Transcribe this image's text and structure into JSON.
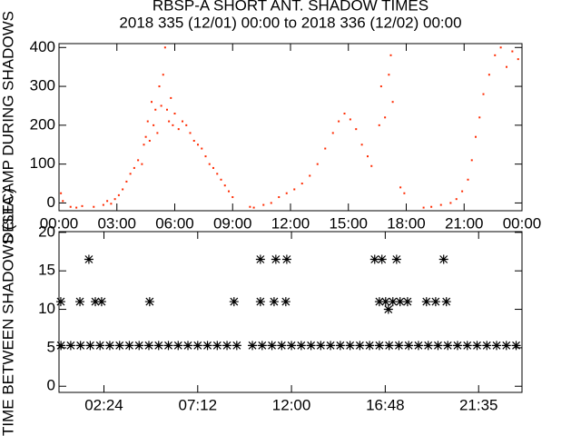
{
  "chart_data": [
    {
      "type": "scatter",
      "marker": "dot",
      "color": "#ff2a00",
      "title": "RBSP-A SHORT ANT. SHADOW TIMES",
      "subtitle": "2018 335 (12/01) 00:00 to 2018 336 (12/02) 00:00",
      "y_label": "DELTA AMP DURING SHADOWS",
      "xlim": [
        0,
        24
      ],
      "ylim": [
        -20,
        410
      ],
      "xticks": [
        {
          "value": 0,
          "label": "00:00"
        },
        {
          "value": 3,
          "label": "03:00"
        },
        {
          "value": 6,
          "label": "06:00"
        },
        {
          "value": 9,
          "label": "09:00"
        },
        {
          "value": 12,
          "label": "12:00"
        },
        {
          "value": 15,
          "label": "15:00"
        },
        {
          "value": 18,
          "label": "18:00"
        },
        {
          "value": 21,
          "label": "21:00"
        },
        {
          "value": 24,
          "label": "00:00"
        }
      ],
      "yticks": [
        0,
        100,
        200,
        300,
        400
      ],
      "x": [
        0.1,
        0.2,
        0.6,
        0.9,
        1.2,
        1.8,
        2.3,
        2.5,
        2.7,
        2.9,
        3.1,
        3.3,
        3.5,
        3.7,
        3.9,
        4.1,
        4.3,
        4.4,
        4.5,
        4.6,
        4.7,
        4.8,
        4.9,
        5.0,
        5.1,
        5.2,
        5.3,
        5.4,
        5.5,
        5.6,
        5.7,
        5.8,
        5.9,
        6.0,
        6.2,
        6.4,
        6.6,
        6.8,
        7.0,
        7.2,
        7.4,
        7.6,
        7.8,
        8.0,
        8.2,
        8.4,
        8.6,
        8.8,
        9.0,
        9.9,
        10.1,
        10.6,
        11.0,
        11.4,
        11.8,
        12.2,
        12.6,
        13.0,
        13.4,
        13.8,
        14.2,
        14.5,
        14.8,
        15.1,
        15.4,
        15.7,
        16.0,
        16.2,
        16.6,
        16.7,
        16.9,
        17.1,
        17.2,
        17.3,
        17.7,
        17.9,
        18.9,
        19.3,
        19.8,
        20.3,
        20.6,
        20.9,
        21.2,
        21.4,
        21.6,
        21.8,
        22.0,
        22.3,
        22.6,
        22.9,
        23.2,
        23.5,
        23.8
      ],
      "values": [
        25,
        5,
        -10,
        -12,
        -8,
        -10,
        -5,
        5,
        -2,
        10,
        20,
        35,
        55,
        75,
        90,
        110,
        100,
        150,
        170,
        210,
        160,
        260,
        200,
        240,
        180,
        300,
        250,
        330,
        400,
        240,
        210,
        270,
        200,
        230,
        190,
        210,
        200,
        180,
        160,
        150,
        140,
        120,
        100,
        90,
        75,
        60,
        45,
        30,
        15,
        -10,
        -12,
        -5,
        0,
        15,
        25,
        35,
        50,
        70,
        100,
        140,
        180,
        210,
        230,
        215,
        190,
        150,
        120,
        95,
        200,
        300,
        220,
        330,
        380,
        260,
        40,
        25,
        -12,
        -10,
        -5,
        0,
        10,
        30,
        60,
        110,
        170,
        220,
        280,
        330,
        380,
        400,
        350,
        390,
        370
      ]
    },
    {
      "type": "scatter",
      "marker": "asterisk",
      "color": "#000000",
      "y_label": "TIME BETWEEN SHADOWS (SEC)",
      "xlim": [
        0.1,
        23.8
      ],
      "ylim": [
        -0.8,
        20.1
      ],
      "xticks": [
        {
          "value": 2.4,
          "label": "02:24"
        },
        {
          "value": 7.2,
          "label": "07:12"
        },
        {
          "value": 12,
          "label": "12:00"
        },
        {
          "value": 16.8,
          "label": "16:48"
        },
        {
          "value": 21.58,
          "label": "21:35"
        }
      ],
      "yticks": [
        0,
        5,
        10,
        15,
        20
      ],
      "x": [
        0.2,
        0.7,
        1.2,
        1.7,
        2.2,
        2.7,
        3.2,
        3.7,
        4.2,
        4.7,
        5.2,
        5.7,
        6.2,
        6.7,
        7.2,
        7.7,
        8.2,
        8.7,
        9.2,
        10.0,
        10.5,
        11.0,
        11.5,
        12.0,
        12.5,
        13.0,
        13.5,
        14.0,
        14.5,
        15.0,
        15.5,
        16.0,
        16.5,
        17.0,
        17.5,
        18.0,
        18.5,
        19.0,
        19.5,
        20.0,
        20.5,
        21.0,
        21.5,
        22.0,
        22.5,
        23.0,
        23.5,
        0.19,
        1.17,
        1.96,
        2.28,
        4.74,
        9.06,
        10.41,
        11.11,
        11.71,
        16.5,
        16.82,
        17.19,
        17.56,
        17.94,
        18.91,
        19.38,
        19.93,
        1.63,
        10.41,
        11.2,
        11.76,
        16.26,
        16.63,
        17.38,
        19.79,
        16.96
      ],
      "values": [
        5.3,
        5.3,
        5.3,
        5.3,
        5.3,
        5.3,
        5.3,
        5.3,
        5.3,
        5.3,
        5.3,
        5.3,
        5.3,
        5.3,
        5.3,
        5.3,
        5.3,
        5.3,
        5.3,
        5.3,
        5.3,
        5.3,
        5.3,
        5.3,
        5.3,
        5.3,
        5.3,
        5.3,
        5.3,
        5.3,
        5.3,
        5.3,
        5.3,
        5.3,
        5.3,
        5.3,
        5.3,
        5.3,
        5.3,
        5.3,
        5.3,
        5.3,
        5.3,
        5.3,
        5.3,
        5.3,
        5.3,
        11,
        11,
        11,
        11,
        11,
        11,
        11,
        11,
        11,
        11,
        11,
        11,
        11,
        11,
        11,
        11,
        11,
        16.5,
        16.5,
        16.5,
        16.5,
        16.5,
        16.5,
        16.5,
        16.5,
        10
      ]
    }
  ]
}
